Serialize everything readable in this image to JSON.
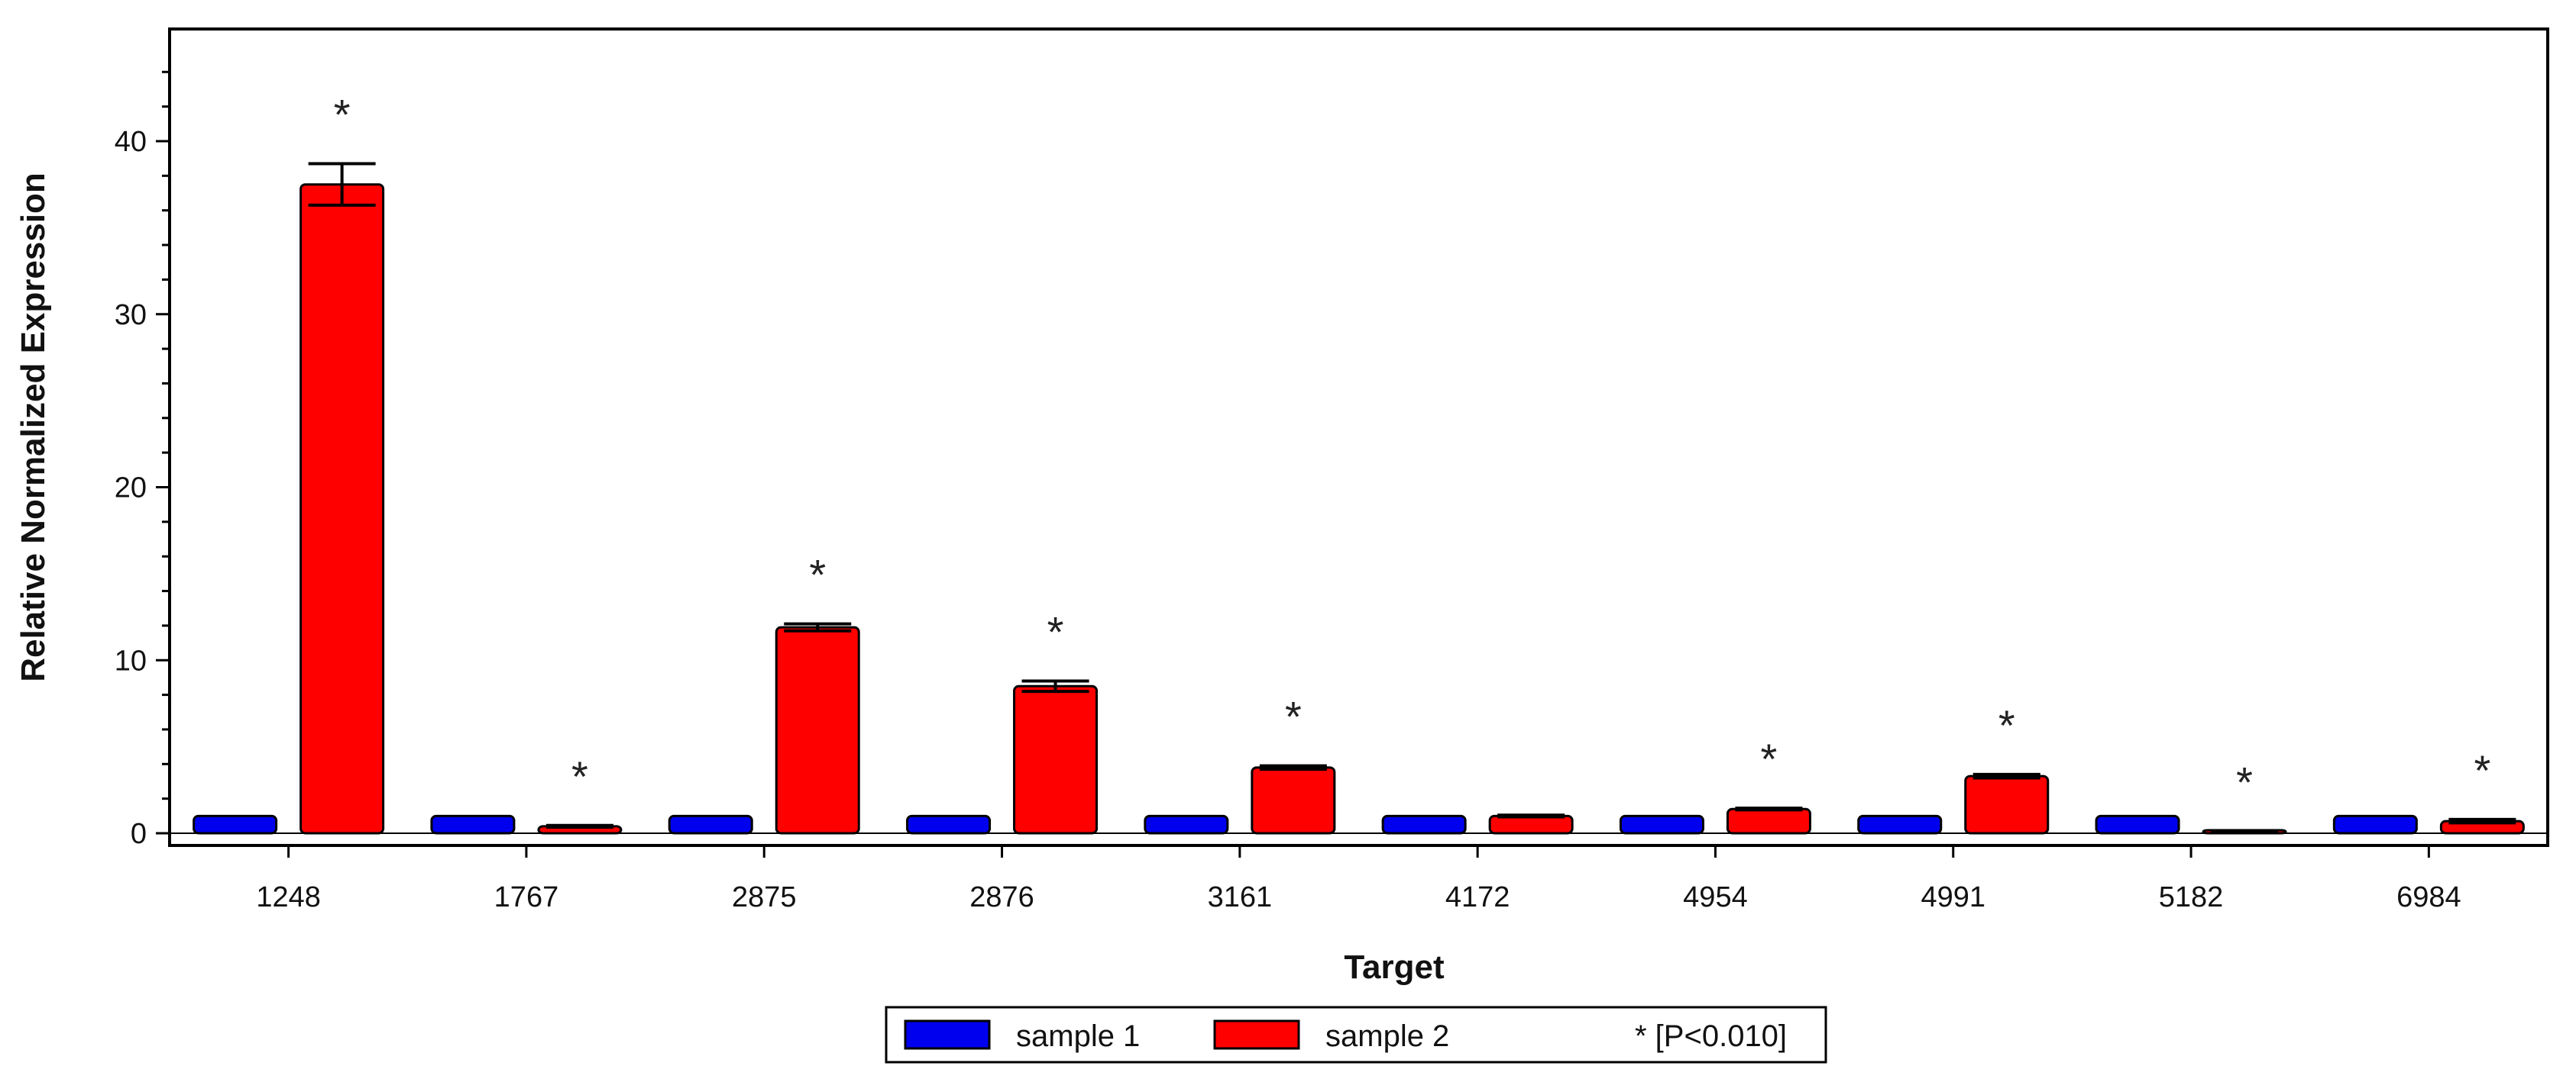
{
  "chart_data": {
    "type": "bar",
    "title": "",
    "xlabel": "Target",
    "ylabel": "Relative Normalized Expression",
    "ylim": [
      -1,
      46
    ],
    "yticks": [
      0,
      10,
      20,
      30,
      40
    ],
    "grid": false,
    "legend_position": "bottom",
    "categories": [
      "1248",
      "1767",
      "2875",
      "2876",
      "3161",
      "4172",
      "4954",
      "4991",
      "5182",
      "6984"
    ],
    "series": [
      {
        "name": "sample 1",
        "color": "#0000ee",
        "values": [
          1,
          1,
          1,
          1,
          1,
          1,
          1,
          1,
          1,
          1
        ]
      },
      {
        "name": "sample 2",
        "color": "#ff0000",
        "values": [
          37.5,
          0.4,
          11.9,
          8.5,
          3.8,
          1.0,
          1.4,
          3.3,
          0.1,
          0.7
        ],
        "error": [
          1.2,
          0.05,
          0.2,
          0.3,
          0.1,
          0.05,
          0.05,
          0.1,
          0.02,
          0.1
        ]
      }
    ],
    "significance_marker": "*",
    "significant": [
      true,
      true,
      true,
      true,
      true,
      false,
      true,
      true,
      true,
      true
    ],
    "legend_note": "* [P<0.010]"
  }
}
